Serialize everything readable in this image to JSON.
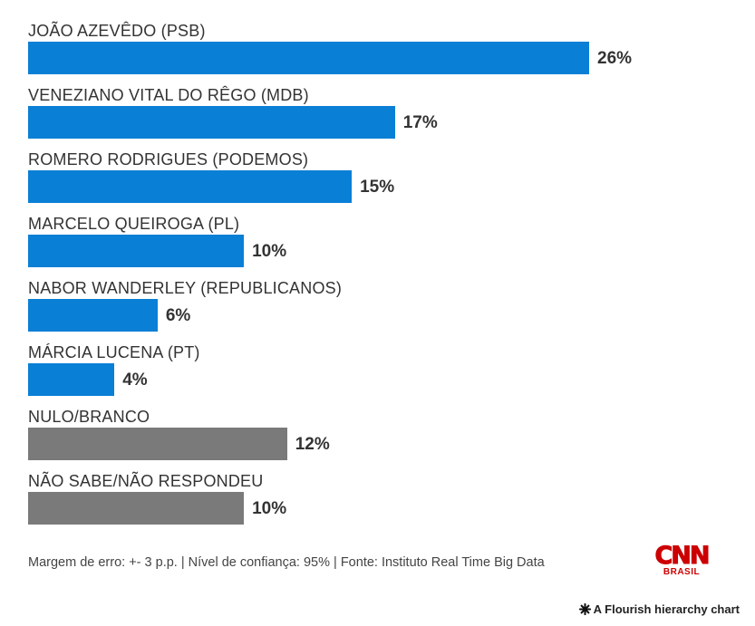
{
  "chart_data": {
    "type": "bar",
    "orientation": "horizontal",
    "categories": [
      "JOÃO AZEVÊDO (PSB)",
      "VENEZIANO VITAL DO RÊGO (MDB)",
      "ROMERO RODRIGUES (PODEMOS)",
      "MARCELO QUEIROGA (PL)",
      "NABOR WANDERLEY (REPUBLICANOS)",
      "MÁRCIA LUCENA (PT)",
      "NULO/BRANCO",
      "NÃO SABE/NÃO RESPONDEU"
    ],
    "values": [
      26,
      17,
      15,
      10,
      6,
      4,
      12,
      10
    ],
    "value_labels": [
      "26%",
      "17%",
      "15%",
      "10%",
      "6%",
      "4%",
      "12%",
      "10%"
    ],
    "colors": [
      "#0a7fd6",
      "#0a7fd6",
      "#0a7fd6",
      "#0a7fd6",
      "#0a7fd6",
      "#0a7fd6",
      "#7a7a7a",
      "#7a7a7a"
    ],
    "xlim": [
      0,
      26
    ],
    "grid": false
  },
  "footer": {
    "note": "Margem de erro: +- 3 p.p. | Nível de confiança: 95% | Fonte: Instituto Real Time Big Data"
  },
  "brand": {
    "word": "CNN",
    "sub": "BRASIL",
    "color": "#cc0000"
  },
  "credit": {
    "icon": "flourish-asterisk-icon",
    "text": "A Flourish hierarchy chart"
  }
}
